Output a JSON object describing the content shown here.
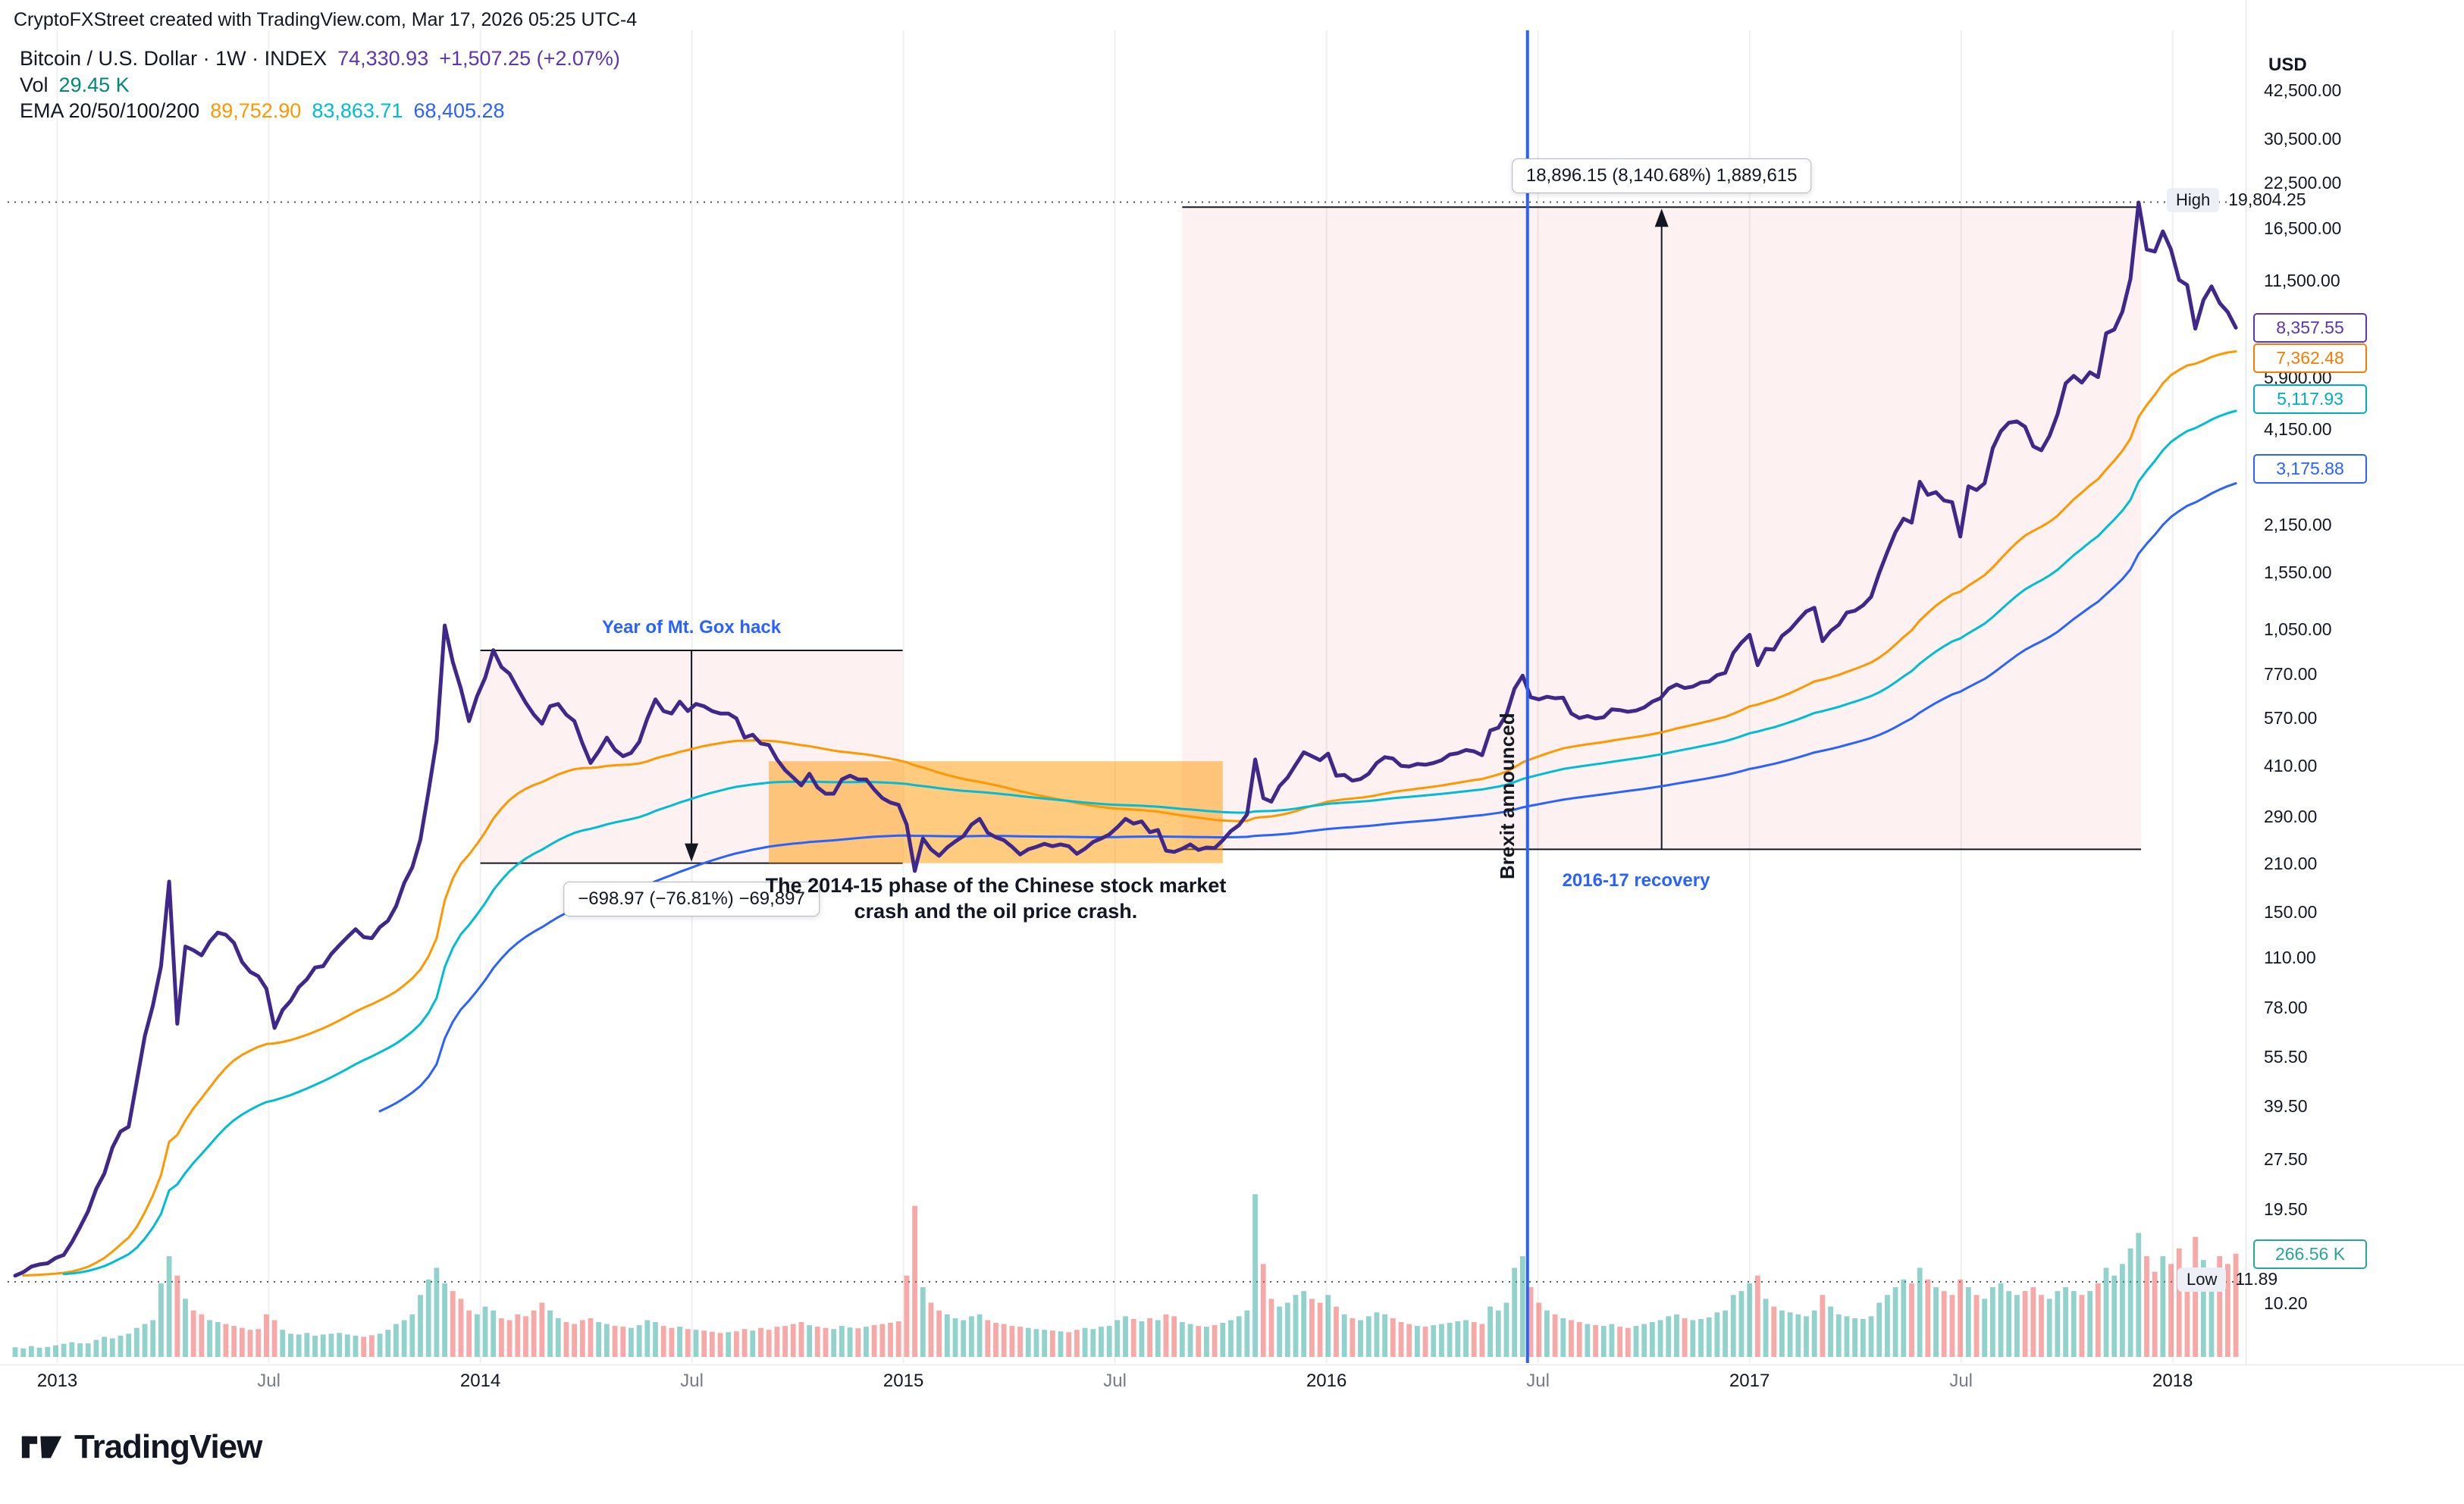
{
  "header": {
    "attribution": "CryptoFXStreet created with TradingView.com, Mar 17, 2026 05:25 UTC-4"
  },
  "legend": {
    "symbol_line": "Bitcoin / U.S. Dollar · 1W · INDEX",
    "price": "74,330.93",
    "change": "+1,507.25 (+2.07%)",
    "vol_label": "Vol",
    "vol_value": "29.45 K",
    "ema_label": "EMA 20/50/100/200",
    "ema_values": [
      "89,752.90",
      "83,863.71",
      "68,405.28"
    ]
  },
  "colors": {
    "price_line": "#3f2889",
    "legend_accent": "#5e35b1",
    "vol_value": "#00897b",
    "ema50": "#ff9800",
    "ema100": "#00bcd4",
    "ema200": "#2962ff",
    "vol_up": "rgba(38,166,154,0.5)",
    "vol_down": "rgba(239,83,80,0.5)",
    "measure_fill": "rgba(242,153,160,0.14)",
    "crash_fill": "rgba(255,152,0,0.5)",
    "note_blue": "#2962ff",
    "grid": "rgba(42,46,57,0.08)",
    "dark": "#131722",
    "muted": "#787b86",
    "badge_purple": "#5e35b1",
    "badge_orange": "#f57c00",
    "badge_cyan": "#00acc1",
    "badge_blue": "#2962ff",
    "badge_teal": "#26a69a"
  },
  "axis": {
    "currency": "USD",
    "y_labels": [
      "42,500.00",
      "30,500.00",
      "22,500.00",
      "16,500.00",
      "11,500.00",
      "5,900.00",
      "4,150.00",
      "2,150.00",
      "1,550.00",
      "1,050.00",
      "770.00",
      "570.00",
      "410.00",
      "290.00",
      "210.00",
      "150.00",
      "110.00",
      "78.00",
      "55.50",
      "39.50",
      "27.50",
      "19.50",
      "10.20"
    ],
    "x_labels": [
      {
        "text": "2013",
        "week": 5.2,
        "major": true
      },
      {
        "text": "Jul",
        "week": 31.3,
        "major": false
      },
      {
        "text": "2014",
        "week": 57.4,
        "major": true
      },
      {
        "text": "Jul",
        "week": 83.5,
        "major": false
      },
      {
        "text": "2015",
        "week": 109.6,
        "major": true
      },
      {
        "text": "Jul",
        "week": 135.7,
        "major": false
      },
      {
        "text": "2016",
        "week": 161.8,
        "major": true
      },
      {
        "text": "Jul",
        "week": 187.9,
        "major": false
      },
      {
        "text": "2017",
        "week": 214.0,
        "major": true
      },
      {
        "text": "Jul",
        "week": 240.1,
        "major": false
      },
      {
        "text": "2018",
        "week": 266.2,
        "major": true
      }
    ],
    "badges": [
      {
        "text": "8,357.55",
        "price": 8357.55,
        "color_key": "badge_purple"
      },
      {
        "text": "7,362.48",
        "price": 7362.48,
        "color_key": "badge_orange"
      },
      {
        "text": "5,117.93",
        "price": 5117.93,
        "color_key": "badge_cyan"
      },
      {
        "text": "3,175.88",
        "price": 3175.88,
        "color_key": "badge_blue"
      }
    ],
    "high": {
      "label": "High",
      "value": "19,804.25",
      "price": 19804.25
    },
    "low": {
      "label": "Low",
      "value": "11.89",
      "price": 11.89
    },
    "vol_badge": {
      "text": "266.56 K",
      "color_key": "badge_teal"
    }
  },
  "annotations": {
    "mtgox": {
      "label": "Year of Mt. Gox hack",
      "measure_text": "−698.97 (−76.81%) −69,897",
      "week_from": 57.4,
      "week_to": 109.5,
      "price_top": 910,
      "price_bottom": 211.03
    },
    "recovery": {
      "label": "2016-17 recovery",
      "label_week": 200,
      "measure_text": "18,896.15 (8,140.68%) 1,889,615",
      "week_from": 144,
      "week_to": 262.3,
      "price_top": 19128.3,
      "price_bottom": 232.12
    },
    "crash_box": {
      "text_line1": "The 2014-15 phase of the Chinese stock market",
      "text_line2": "crash and the oil price crash.",
      "week_from": 93,
      "week_to": 149,
      "price_top": 425,
      "price_bottom": 211
    },
    "brexit": {
      "label": "Brexit announced",
      "week": 186.6
    }
  },
  "footer": {
    "brand": "TradingView"
  },
  "chart_data": {
    "type": "line",
    "title": "Bitcoin / U.S. Dollar · 1W · INDEX",
    "ylabel": "USD",
    "y_scale": "log",
    "y_range": [
      10.2,
      42500
    ],
    "x_range": [
      "Nov 2012",
      "Apr 2018"
    ],
    "x_unit": "weeks (1W bars)",
    "grid": "vertical-only",
    "high": 19804.25,
    "low": 11.89,
    "ema_periods": [
      50,
      100,
      200
    ],
    "price": [
      12.4,
      12.7,
      13.2,
      13.4,
      13.5,
      14.0,
      14.3,
      15.6,
      17.3,
      19.3,
      22.5,
      25.0,
      29.9,
      33.4,
      34.5,
      47.0,
      64.3,
      79.4,
      104,
      186,
      70,
      119,
      116,
      112,
      123,
      131,
      129,
      122,
      107,
      100,
      97,
      89,
      68,
      77,
      82,
      90,
      95,
      103,
      104,
      113,
      120,
      127,
      134,
      127,
      126,
      136,
      142,
      157,
      184,
      205,
      248,
      345,
      490,
      1080,
      840,
      700,
      560,
      665,
      755,
      912,
      812,
      775,
      700,
      635,
      585,
      550,
      620,
      630,
      585,
      560,
      480,
      420,
      455,
      500,
      460,
      440,
      450,
      485,
      570,
      650,
      600,
      590,
      640,
      600,
      630,
      620,
      600,
      590,
      590,
      570,
      500,
      510,
      480,
      475,
      430,
      400,
      380,
      360,
      390,
      355,
      340,
      340,
      375,
      385,
      375,
      375,
      350,
      330,
      320,
      315,
      275,
      200,
      250,
      232,
      222,
      235,
      245,
      254,
      275,
      286,
      260,
      252,
      247,
      236,
      224,
      232,
      236,
      241,
      237,
      240,
      237,
      225,
      233,
      244,
      250,
      257,
      270,
      286,
      277,
      281,
      261,
      265,
      230,
      228,
      233,
      240,
      231,
      235,
      234,
      247,
      263,
      274,
      295,
      430,
      330,
      322,
      358,
      380,
      415,
      452,
      440,
      428,
      448,
      385,
      387,
      372,
      376,
      390,
      420,
      437,
      433,
      412,
      410,
      417,
      415,
      420,
      428,
      445,
      449,
      459,
      455,
      443,
      525,
      535,
      585,
      700,
      765,
      660,
      650,
      662,
      655,
      658,
      590,
      572,
      580,
      570,
      575,
      607,
      604,
      597,
      602,
      615,
      640,
      655,
      700,
      720,
      703,
      710,
      730,
      735,
      768,
      780,
      895,
      960,
      1013,
      822,
      920,
      915,
      1005,
      1050,
      1120,
      1190,
      1220,
      970,
      1040,
      1085,
      1180,
      1195,
      1240,
      1315,
      1550,
      1790,
      2050,
      2250,
      2190,
      2900,
      2650,
      2700,
      2550,
      2520,
      1990,
      2810,
      2740,
      2870,
      3650,
      4100,
      4350,
      4390,
      4230,
      3700,
      3600,
      3970,
      4610,
      5700,
      6000,
      5730,
      6150,
      5950,
      8040,
      8250,
      9330,
      11700,
      19750,
      14300,
      14100,
      16200,
      14300,
      11600,
      11200,
      8300,
      10100,
      11100,
      9900,
      9300,
      8357.55
    ],
    "volume_k": [
      25,
      22,
      28,
      24,
      26,
      30,
      34,
      38,
      35,
      35,
      44,
      52,
      48,
      55,
      60,
      75,
      85,
      95,
      190,
      260,
      210,
      150,
      120,
      110,
      95,
      90,
      85,
      80,
      75,
      70,
      72,
      110,
      95,
      70,
      60,
      58,
      62,
      55,
      58,
      60,
      62,
      58,
      55,
      52,
      56,
      60,
      70,
      85,
      95,
      110,
      160,
      200,
      230,
      190,
      170,
      150,
      120,
      110,
      130,
      120,
      100,
      95,
      110,
      105,
      120,
      140,
      120,
      100,
      90,
      85,
      95,
      100,
      90,
      85,
      80,
      78,
      75,
      82,
      95,
      90,
      80,
      75,
      78,
      72,
      70,
      68,
      65,
      62,
      64,
      66,
      72,
      68,
      75,
      70,
      78,
      80,
      85,
      90,
      82,
      78,
      75,
      72,
      80,
      76,
      74,
      78,
      82,
      85,
      88,
      92,
      210,
      390,
      180,
      140,
      120,
      110,
      100,
      95,
      105,
      110,
      95,
      88,
      85,
      80,
      78,
      75,
      72,
      70,
      68,
      66,
      64,
      70,
      75,
      72,
      78,
      80,
      95,
      105,
      98,
      92,
      100,
      95,
      110,
      105,
      90,
      85,
      80,
      78,
      82,
      88,
      95,
      105,
      120,
      420,
      240,
      150,
      130,
      140,
      160,
      170,
      150,
      140,
      160,
      130,
      110,
      100,
      95,
      105,
      115,
      110,
      100,
      90,
      85,
      80,
      78,
      82,
      85,
      88,
      92,
      95,
      90,
      85,
      130,
      120,
      140,
      230,
      260,
      180,
      140,
      120,
      110,
      100,
      95,
      90,
      85,
      82,
      80,
      85,
      78,
      75,
      80,
      85,
      90,
      95,
      105,
      110,
      100,
      95,
      98,
      102,
      115,
      120,
      160,
      170,
      190,
      210,
      150,
      130,
      120,
      115,
      110,
      105,
      120,
      160,
      130,
      110,
      105,
      100,
      98,
      105,
      140,
      160,
      180,
      200,
      190,
      230,
      200,
      180,
      170,
      160,
      200,
      180,
      160,
      150,
      180,
      190,
      170,
      160,
      170,
      180,
      160,
      150,
      170,
      180,
      170,
      160,
      170,
      190,
      230,
      210,
      240,
      280,
      320,
      260,
      220,
      260,
      240,
      280,
      230,
      310,
      250,
      230,
      260,
      240,
      266.56
    ]
  }
}
